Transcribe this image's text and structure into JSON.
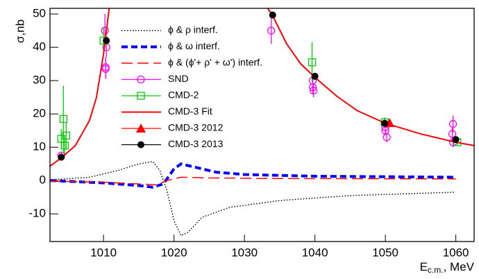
{
  "chart_data": {
    "type": "line",
    "ylabel": "σ,nb",
    "xlabel": [
      "E",
      "c.m.",
      ", MeV"
    ],
    "xlim": [
      1002.4,
      1062.6
    ],
    "xticks": [
      1010,
      1020,
      1030,
      1040,
      1050,
      1060
    ],
    "ylim": [
      -18.3,
      51.7
    ],
    "yticks": [
      -10,
      0,
      10,
      20,
      30,
      40,
      50
    ],
    "series": [
      {
        "name": "ϕ & ρ interf.",
        "color": "#000000",
        "kind": "line",
        "dash": "dotted",
        "x": [
          1002.4,
          1008,
          1012,
          1015,
          1017,
          1018,
          1019,
          1020,
          1021,
          1022,
          1024,
          1028,
          1035,
          1045,
          1060
        ],
        "values": [
          0.2,
          1,
          3,
          5,
          5.7,
          3,
          -3,
          -12,
          -16.5,
          -15.5,
          -11,
          -8,
          -6,
          -4.5,
          -3.5
        ]
      },
      {
        "name": "ϕ & ω interf.",
        "color": "#0000ff",
        "kind": "line",
        "dash": "dashed",
        "x": [
          1002.4,
          1010,
          1015,
          1017,
          1018.5,
          1020,
          1021,
          1023,
          1026,
          1030,
          1040,
          1060
        ],
        "values": [
          0,
          -0.7,
          -1.5,
          -2,
          -1,
          3.5,
          5,
          4,
          2.5,
          1.8,
          1.3,
          1
        ]
      },
      {
        "name": "ϕ & (ϕ'+ ρ' + ω') interf.",
        "color": "#ff0000",
        "kind": "line",
        "dash": "longdash",
        "x": [
          1002.4,
          1010,
          1015,
          1017.5,
          1019,
          1021,
          1025,
          1035,
          1060
        ],
        "values": [
          -0.2,
          -0.5,
          -1,
          -1.3,
          0,
          1,
          0.8,
          0.6,
          0.5
        ]
      },
      {
        "name": "SND",
        "color": "#ff00ff",
        "kind": "points",
        "marker": "circle",
        "x": [
          1004,
          1010.2,
          1010.3,
          1010.4,
          1010.3,
          1033.8,
          1039.7,
          1039.7,
          1039.8,
          1050,
          1050,
          1050.2,
          1059.6,
          1059.5,
          1059.6
        ],
        "values": [
          7.5,
          45,
          34,
          40,
          33.5,
          45,
          30,
          28,
          27,
          16,
          15,
          13,
          17,
          14,
          11.5
        ],
        "errors": [
          1,
          5,
          3,
          3,
          3,
          4,
          2,
          2,
          2,
          1.5,
          1.5,
          1.5,
          2.5,
          2,
          1.5
        ]
      },
      {
        "name": "CMD-2",
        "color": "#00cc00",
        "kind": "points",
        "marker": "square",
        "x": [
          1004,
          1004.3,
          1004.5,
          1004.7,
          1010,
          1039.6,
          1049.9,
          1060.2
        ],
        "values": [
          12.5,
          18.5,
          10.5,
          13.5,
          42,
          35.5,
          17.5,
          11.5
        ],
        "errors": [
          3,
          10,
          3,
          4,
          4,
          6,
          1.5,
          1
        ]
      },
      {
        "name": "CMD-3 Fit",
        "color": "#ff0000",
        "kind": "line",
        "dash": "solid",
        "x": [
          1002.4,
          1004,
          1006,
          1008,
          1009,
          1010,
          1010.8,
          1022,
          1033.3,
          1034,
          1036,
          1038,
          1040,
          1043,
          1046,
          1050,
          1055,
          1060,
          1062.6
        ],
        "values": [
          4.3,
          6.8,
          10.5,
          18,
          25,
          38,
          51.7,
          null,
          51.7,
          49.5,
          41,
          35,
          31,
          25.5,
          21,
          17.2,
          14,
          11.5,
          10.5
        ]
      },
      {
        "name": "CMD-3 2012",
        "color": "#ff0000",
        "kind": "points",
        "marker": "triangle",
        "x": [
          1050.6
        ],
        "values": [
          17.3
        ],
        "errors": [
          0.5
        ]
      },
      {
        "name": "CMD-3 2013",
        "color": "#000000",
        "kind": "points",
        "marker": "dot",
        "x": [
          1004,
          1010.4,
          1034,
          1040,
          1049.9,
          1060
        ],
        "values": [
          7,
          42,
          49.7,
          31.3,
          17.2,
          12.3
        ],
        "errors": [
          0.5,
          1,
          1,
          1,
          0.5,
          0.5
        ]
      }
    ]
  }
}
